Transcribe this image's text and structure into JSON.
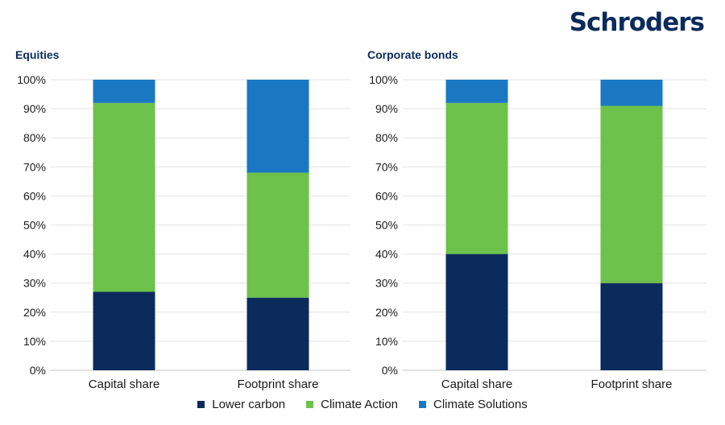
{
  "brand": "Schroders",
  "colors": {
    "lower_carbon": "#0b2b5c",
    "climate_action": "#6cc24a",
    "climate_solutions": "#1a78c2",
    "grid": "#e3e3e3",
    "axis": "#c8c8c8"
  },
  "legend": {
    "items": [
      "Lower carbon",
      "Climate Action",
      "Climate Solutions"
    ]
  },
  "chart_data": [
    {
      "type": "bar",
      "stacked": true,
      "title": "Equities",
      "categories": [
        "Capital share",
        "Footprint share"
      ],
      "series": [
        {
          "name": "Lower carbon",
          "values": [
            27,
            25
          ]
        },
        {
          "name": "Climate Action",
          "values": [
            65,
            43
          ]
        },
        {
          "name": "Climate Solutions",
          "values": [
            8,
            32
          ]
        }
      ],
      "yticks": [
        "0%",
        "10%",
        "20%",
        "30%",
        "40%",
        "50%",
        "60%",
        "70%",
        "80%",
        "90%",
        "100%"
      ],
      "ylim": [
        0,
        100
      ],
      "grid": true,
      "legend_position": "bottom"
    },
    {
      "type": "bar",
      "stacked": true,
      "title": "Corporate bonds",
      "categories": [
        "Capital share",
        "Footprint share"
      ],
      "series": [
        {
          "name": "Lower carbon",
          "values": [
            40,
            30
          ]
        },
        {
          "name": "Climate Action",
          "values": [
            52,
            61
          ]
        },
        {
          "name": "Climate Solutions",
          "values": [
            8,
            9
          ]
        }
      ],
      "yticks": [
        "0%",
        "10%",
        "20%",
        "30%",
        "40%",
        "50%",
        "60%",
        "70%",
        "80%",
        "90%",
        "100%"
      ],
      "ylim": [
        0,
        100
      ],
      "grid": true,
      "legend_position": "bottom"
    }
  ]
}
